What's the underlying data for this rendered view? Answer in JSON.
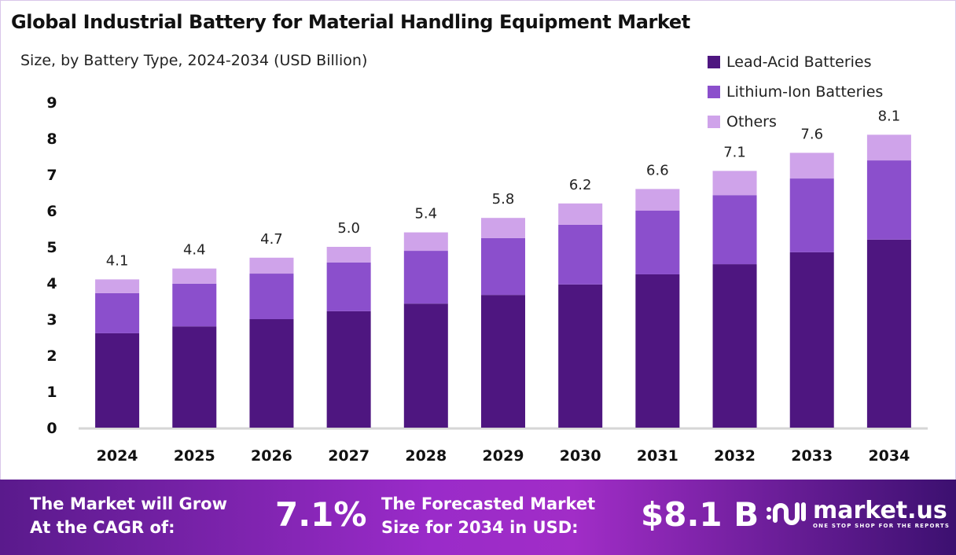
{
  "title": "Global Industrial Battery for Material Handling Equipment Market",
  "subtitle": "Size, by Battery Type, 2024-2034 (USD Billion)",
  "colors": {
    "lead_acid": "#4E1680",
    "lithium_ion": "#8B4FCC",
    "others": "#CFA3EA"
  },
  "chart_data": {
    "type": "bar",
    "stacked": true,
    "title": "Global Industrial Battery for Material Handling Equipment Market",
    "subtitle": "Size, by Battery Type, 2024-2034 (USD Billion)",
    "categories": [
      "2024",
      "2025",
      "2026",
      "2027",
      "2028",
      "2029",
      "2030",
      "2031",
      "2032",
      "2033",
      "2034"
    ],
    "series": [
      {
        "name": "Lead-Acid Batteries",
        "color": "#4E1680",
        "values": [
          2.61,
          2.8,
          3.0,
          3.22,
          3.43,
          3.67,
          3.96,
          4.24,
          4.52,
          4.85,
          5.2
        ]
      },
      {
        "name": "Lithium-Ion Batteries",
        "color": "#8B4FCC",
        "values": [
          1.11,
          1.18,
          1.26,
          1.35,
          1.46,
          1.57,
          1.65,
          1.76,
          1.91,
          2.04,
          2.19
        ]
      },
      {
        "name": "Others",
        "color": "#CFA3EA",
        "values": [
          0.38,
          0.42,
          0.44,
          0.43,
          0.51,
          0.56,
          0.59,
          0.6,
          0.67,
          0.71,
          0.71
        ]
      }
    ],
    "totals": [
      "4.1",
      "4.4",
      "4.7",
      "5.0",
      "5.4",
      "5.8",
      "6.2",
      "6.6",
      "7.1",
      "7.6",
      "8.1"
    ],
    "ylim": [
      0,
      9
    ],
    "yticks": [
      "0",
      "1",
      "2",
      "3",
      "4",
      "5",
      "6",
      "7",
      "8",
      "9"
    ],
    "grid": false,
    "legend": "top-right"
  },
  "footer": {
    "cagr_label_1": "The Market will Grow",
    "cagr_label_2": "At the CAGR of:",
    "cagr_value": "7.1%",
    "forecast_label_1": "The Forecasted Market",
    "forecast_label_2": "Size for 2034 in USD:",
    "forecast_value": "$8.1 B",
    "logo_name": "market.us",
    "logo_tagline": "ONE STOP SHOP FOR THE REPORTS"
  }
}
